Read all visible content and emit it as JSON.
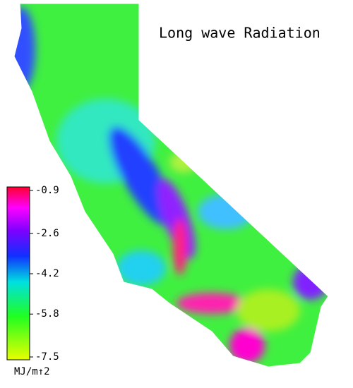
{
  "title": "Long wave Radiation",
  "colorbar": {
    "ticks": [
      -0.9,
      -2.6,
      -4.2,
      -5.8,
      -7.5
    ],
    "unit": "MJ/m↑2"
  }
}
